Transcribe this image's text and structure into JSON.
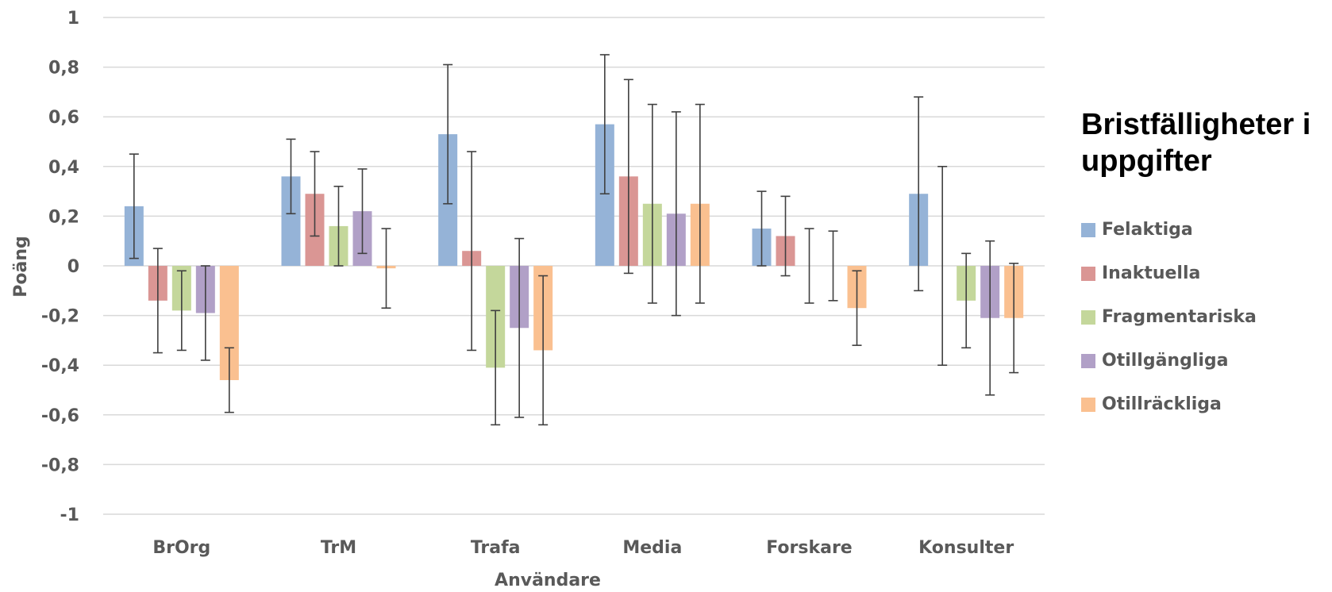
{
  "chart_data": {
    "type": "bar",
    "categories": [
      "BrOrg",
      "TrM",
      "Trafa",
      "Media",
      "Forskare",
      "Konsulter"
    ],
    "xlabel": "Användare",
    "ylabel": "Poäng",
    "ylim": [
      -1,
      1
    ],
    "yticks": [
      "1",
      "0,8",
      "0,6",
      "0,4",
      "0,2",
      "0",
      "-0,2",
      "-0,4",
      "-0,6",
      "-0,8",
      "-1"
    ],
    "grid": true,
    "legend_title": "Bristfälligheter i uppgifter",
    "legend_position": "right",
    "series": [
      {
        "name": "Felaktiga",
        "color": "#95b3d7",
        "values": [
          0.24,
          0.36,
          0.53,
          0.57,
          0.15,
          0.29
        ],
        "err_low": [
          0.03,
          0.21,
          0.25,
          0.29,
          0.0,
          -0.1
        ],
        "err_high": [
          0.45,
          0.51,
          0.81,
          0.85,
          0.3,
          0.68
        ]
      },
      {
        "name": "Inaktuella",
        "color": "#da9694",
        "values": [
          -0.14,
          0.29,
          0.06,
          0.36,
          0.12,
          0.0
        ],
        "err_low": [
          -0.35,
          0.12,
          -0.34,
          -0.03,
          -0.04,
          -0.4
        ],
        "err_high": [
          0.07,
          0.46,
          0.46,
          0.75,
          0.28,
          0.4
        ]
      },
      {
        "name": "Fragmentariska",
        "color": "#c4d79b",
        "values": [
          -0.18,
          0.16,
          -0.41,
          0.25,
          0.0,
          -0.14
        ],
        "err_low": [
          -0.34,
          0.0,
          -0.64,
          -0.15,
          -0.15,
          -0.33
        ],
        "err_high": [
          -0.02,
          0.32,
          -0.18,
          0.65,
          0.15,
          0.05
        ]
      },
      {
        "name": "Otillgängliga",
        "color": "#b1a0c7",
        "values": [
          -0.19,
          0.22,
          -0.25,
          0.21,
          0.0,
          -0.21
        ],
        "err_low": [
          -0.38,
          0.05,
          -0.61,
          -0.2,
          -0.14,
          -0.52
        ],
        "err_high": [
          0.0,
          0.39,
          0.11,
          0.62,
          0.14,
          0.1
        ]
      },
      {
        "name": "Otillräckliga",
        "color": "#fac090",
        "values": [
          -0.46,
          -0.01,
          -0.34,
          0.25,
          -0.17,
          -0.21
        ],
        "err_low": [
          -0.59,
          -0.17,
          -0.64,
          -0.15,
          -0.32,
          -0.43
        ],
        "err_high": [
          -0.33,
          0.15,
          -0.04,
          0.65,
          -0.02,
          0.01
        ]
      }
    ]
  }
}
